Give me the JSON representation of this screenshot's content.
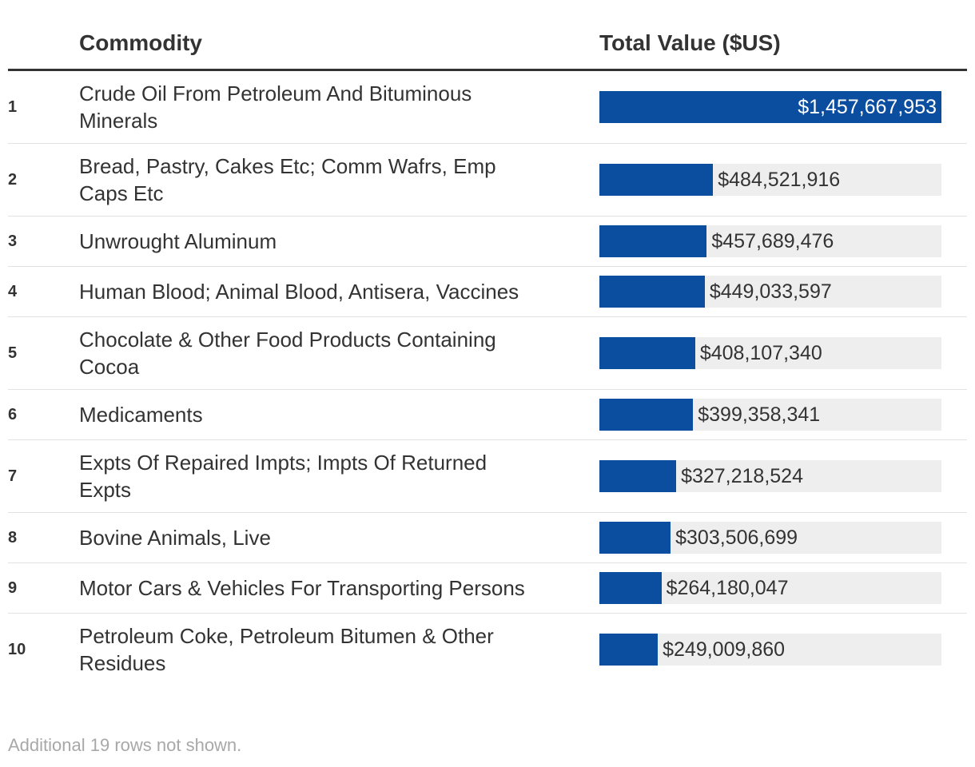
{
  "table": {
    "columns": [
      "Commodity",
      "Total Value ($US)"
    ],
    "rows": [
      {
        "rank": 1,
        "commodity": "Crude Oil From Petroleum And Bituminous Minerals",
        "value": 1457667953,
        "label": "$1,457,667,953"
      },
      {
        "rank": 2,
        "commodity": "Bread, Pastry, Cakes Etc; Comm Wafrs, Emp Caps Etc",
        "value": 484521916,
        "label": "$484,521,916"
      },
      {
        "rank": 3,
        "commodity": "Unwrought Aluminum",
        "value": 457689476,
        "label": "$457,689,476"
      },
      {
        "rank": 4,
        "commodity": "Human Blood; Animal Blood, Antisera, Vaccines",
        "value": 449033597,
        "label": "$449,033,597"
      },
      {
        "rank": 5,
        "commodity": "Chocolate & Other Food Products Containing Cocoa",
        "value": 408107340,
        "label": "$408,107,340"
      },
      {
        "rank": 6,
        "commodity": "Medicaments",
        "value": 399358341,
        "label": "$399,358,341"
      },
      {
        "rank": 7,
        "commodity": "Expts Of Repaired Impts; Impts Of Returned Expts",
        "value": 327218524,
        "label": "$327,218,524"
      },
      {
        "rank": 8,
        "commodity": "Bovine Animals, Live",
        "value": 303506699,
        "label": "$303,506,699"
      },
      {
        "rank": 9,
        "commodity": "Motor Cars & Vehicles For Transporting Persons",
        "value": 264180047,
        "label": "$264,180,047"
      },
      {
        "rank": 10,
        "commodity": "Petroleum Coke, Petroleum Bitumen & Other Residues",
        "value": 249009860,
        "label": "$249,009,860"
      }
    ],
    "bar_color": "#0b4e9f",
    "footer": "Additional 19 rows not shown."
  }
}
